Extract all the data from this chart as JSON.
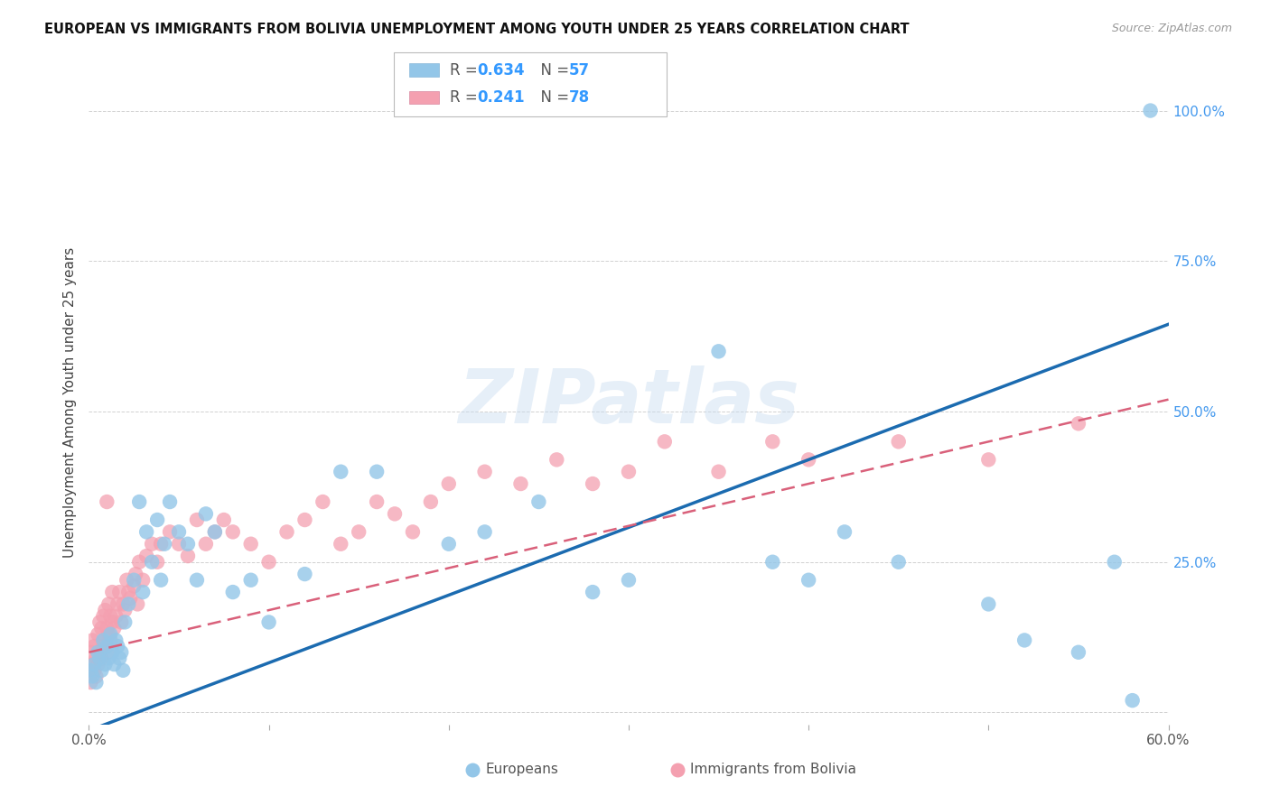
{
  "title": "EUROPEAN VS IMMIGRANTS FROM BOLIVIA UNEMPLOYMENT AMONG YOUTH UNDER 25 YEARS CORRELATION CHART",
  "source": "Source: ZipAtlas.com",
  "ylabel": "Unemployment Among Youth under 25 years",
  "xlim": [
    0.0,
    0.6
  ],
  "ylim": [
    -0.02,
    1.05
  ],
  "europeans_R": 0.634,
  "europeans_N": 57,
  "bolivia_R": 0.241,
  "bolivia_N": 78,
  "european_color": "#93C6E8",
  "bolivia_color": "#F4A0B0",
  "european_line_color": "#1B6BB0",
  "bolivia_line_color": "#D9607A",
  "background_color": "#FFFFFF",
  "grid_color": "#CCCCCC",
  "watermark": "ZIPatlas",
  "europeans_x": [
    0.001,
    0.002,
    0.003,
    0.004,
    0.005,
    0.006,
    0.007,
    0.008,
    0.009,
    0.01,
    0.011,
    0.012,
    0.013,
    0.014,
    0.015,
    0.016,
    0.017,
    0.018,
    0.019,
    0.02,
    0.022,
    0.025,
    0.028,
    0.03,
    0.032,
    0.035,
    0.038,
    0.04,
    0.042,
    0.045,
    0.05,
    0.055,
    0.06,
    0.065,
    0.07,
    0.08,
    0.09,
    0.1,
    0.12,
    0.14,
    0.16,
    0.2,
    0.22,
    0.25,
    0.28,
    0.3,
    0.35,
    0.38,
    0.4,
    0.42,
    0.45,
    0.5,
    0.52,
    0.55,
    0.57,
    0.58,
    0.59
  ],
  "europeans_y": [
    0.07,
    0.06,
    0.08,
    0.05,
    0.1,
    0.09,
    0.07,
    0.12,
    0.08,
    0.11,
    0.09,
    0.13,
    0.1,
    0.08,
    0.12,
    0.11,
    0.09,
    0.1,
    0.07,
    0.15,
    0.18,
    0.22,
    0.35,
    0.2,
    0.3,
    0.25,
    0.32,
    0.22,
    0.28,
    0.35,
    0.3,
    0.28,
    0.22,
    0.33,
    0.3,
    0.2,
    0.22,
    0.15,
    0.23,
    0.4,
    0.4,
    0.28,
    0.3,
    0.35,
    0.2,
    0.22,
    0.6,
    0.25,
    0.22,
    0.3,
    0.25,
    0.18,
    0.12,
    0.1,
    0.25,
    0.02,
    1.0
  ],
  "bolivia_x": [
    0.001,
    0.001,
    0.002,
    0.002,
    0.003,
    0.003,
    0.004,
    0.004,
    0.005,
    0.005,
    0.006,
    0.006,
    0.007,
    0.007,
    0.008,
    0.008,
    0.009,
    0.009,
    0.01,
    0.01,
    0.011,
    0.011,
    0.012,
    0.012,
    0.013,
    0.013,
    0.014,
    0.015,
    0.016,
    0.017,
    0.018,
    0.019,
    0.02,
    0.021,
    0.022,
    0.023,
    0.025,
    0.026,
    0.027,
    0.028,
    0.03,
    0.032,
    0.035,
    0.038,
    0.04,
    0.045,
    0.05,
    0.055,
    0.06,
    0.065,
    0.07,
    0.075,
    0.08,
    0.09,
    0.1,
    0.11,
    0.12,
    0.13,
    0.14,
    0.15,
    0.16,
    0.17,
    0.18,
    0.19,
    0.2,
    0.22,
    0.24,
    0.26,
    0.28,
    0.3,
    0.32,
    0.35,
    0.38,
    0.4,
    0.45,
    0.5,
    0.55,
    0.01
  ],
  "bolivia_y": [
    0.05,
    0.1,
    0.08,
    0.12,
    0.07,
    0.11,
    0.06,
    0.09,
    0.08,
    0.13,
    0.1,
    0.15,
    0.09,
    0.14,
    0.11,
    0.16,
    0.12,
    0.17,
    0.1,
    0.14,
    0.13,
    0.18,
    0.12,
    0.16,
    0.15,
    0.2,
    0.14,
    0.16,
    0.18,
    0.2,
    0.15,
    0.18,
    0.17,
    0.22,
    0.2,
    0.19,
    0.21,
    0.23,
    0.18,
    0.25,
    0.22,
    0.26,
    0.28,
    0.25,
    0.28,
    0.3,
    0.28,
    0.26,
    0.32,
    0.28,
    0.3,
    0.32,
    0.3,
    0.28,
    0.25,
    0.3,
    0.32,
    0.35,
    0.28,
    0.3,
    0.35,
    0.33,
    0.3,
    0.35,
    0.38,
    0.4,
    0.38,
    0.42,
    0.38,
    0.4,
    0.45,
    0.4,
    0.45,
    0.42,
    0.45,
    0.42,
    0.48,
    0.35
  ],
  "eu_line_x0": 0.0,
  "eu_line_y0": -0.03,
  "eu_line_x1": 0.6,
  "eu_line_y1": 0.645,
  "bo_line_x0": 0.0,
  "bo_line_y0": 0.1,
  "bo_line_x1": 0.6,
  "bo_line_y1": 0.52
}
